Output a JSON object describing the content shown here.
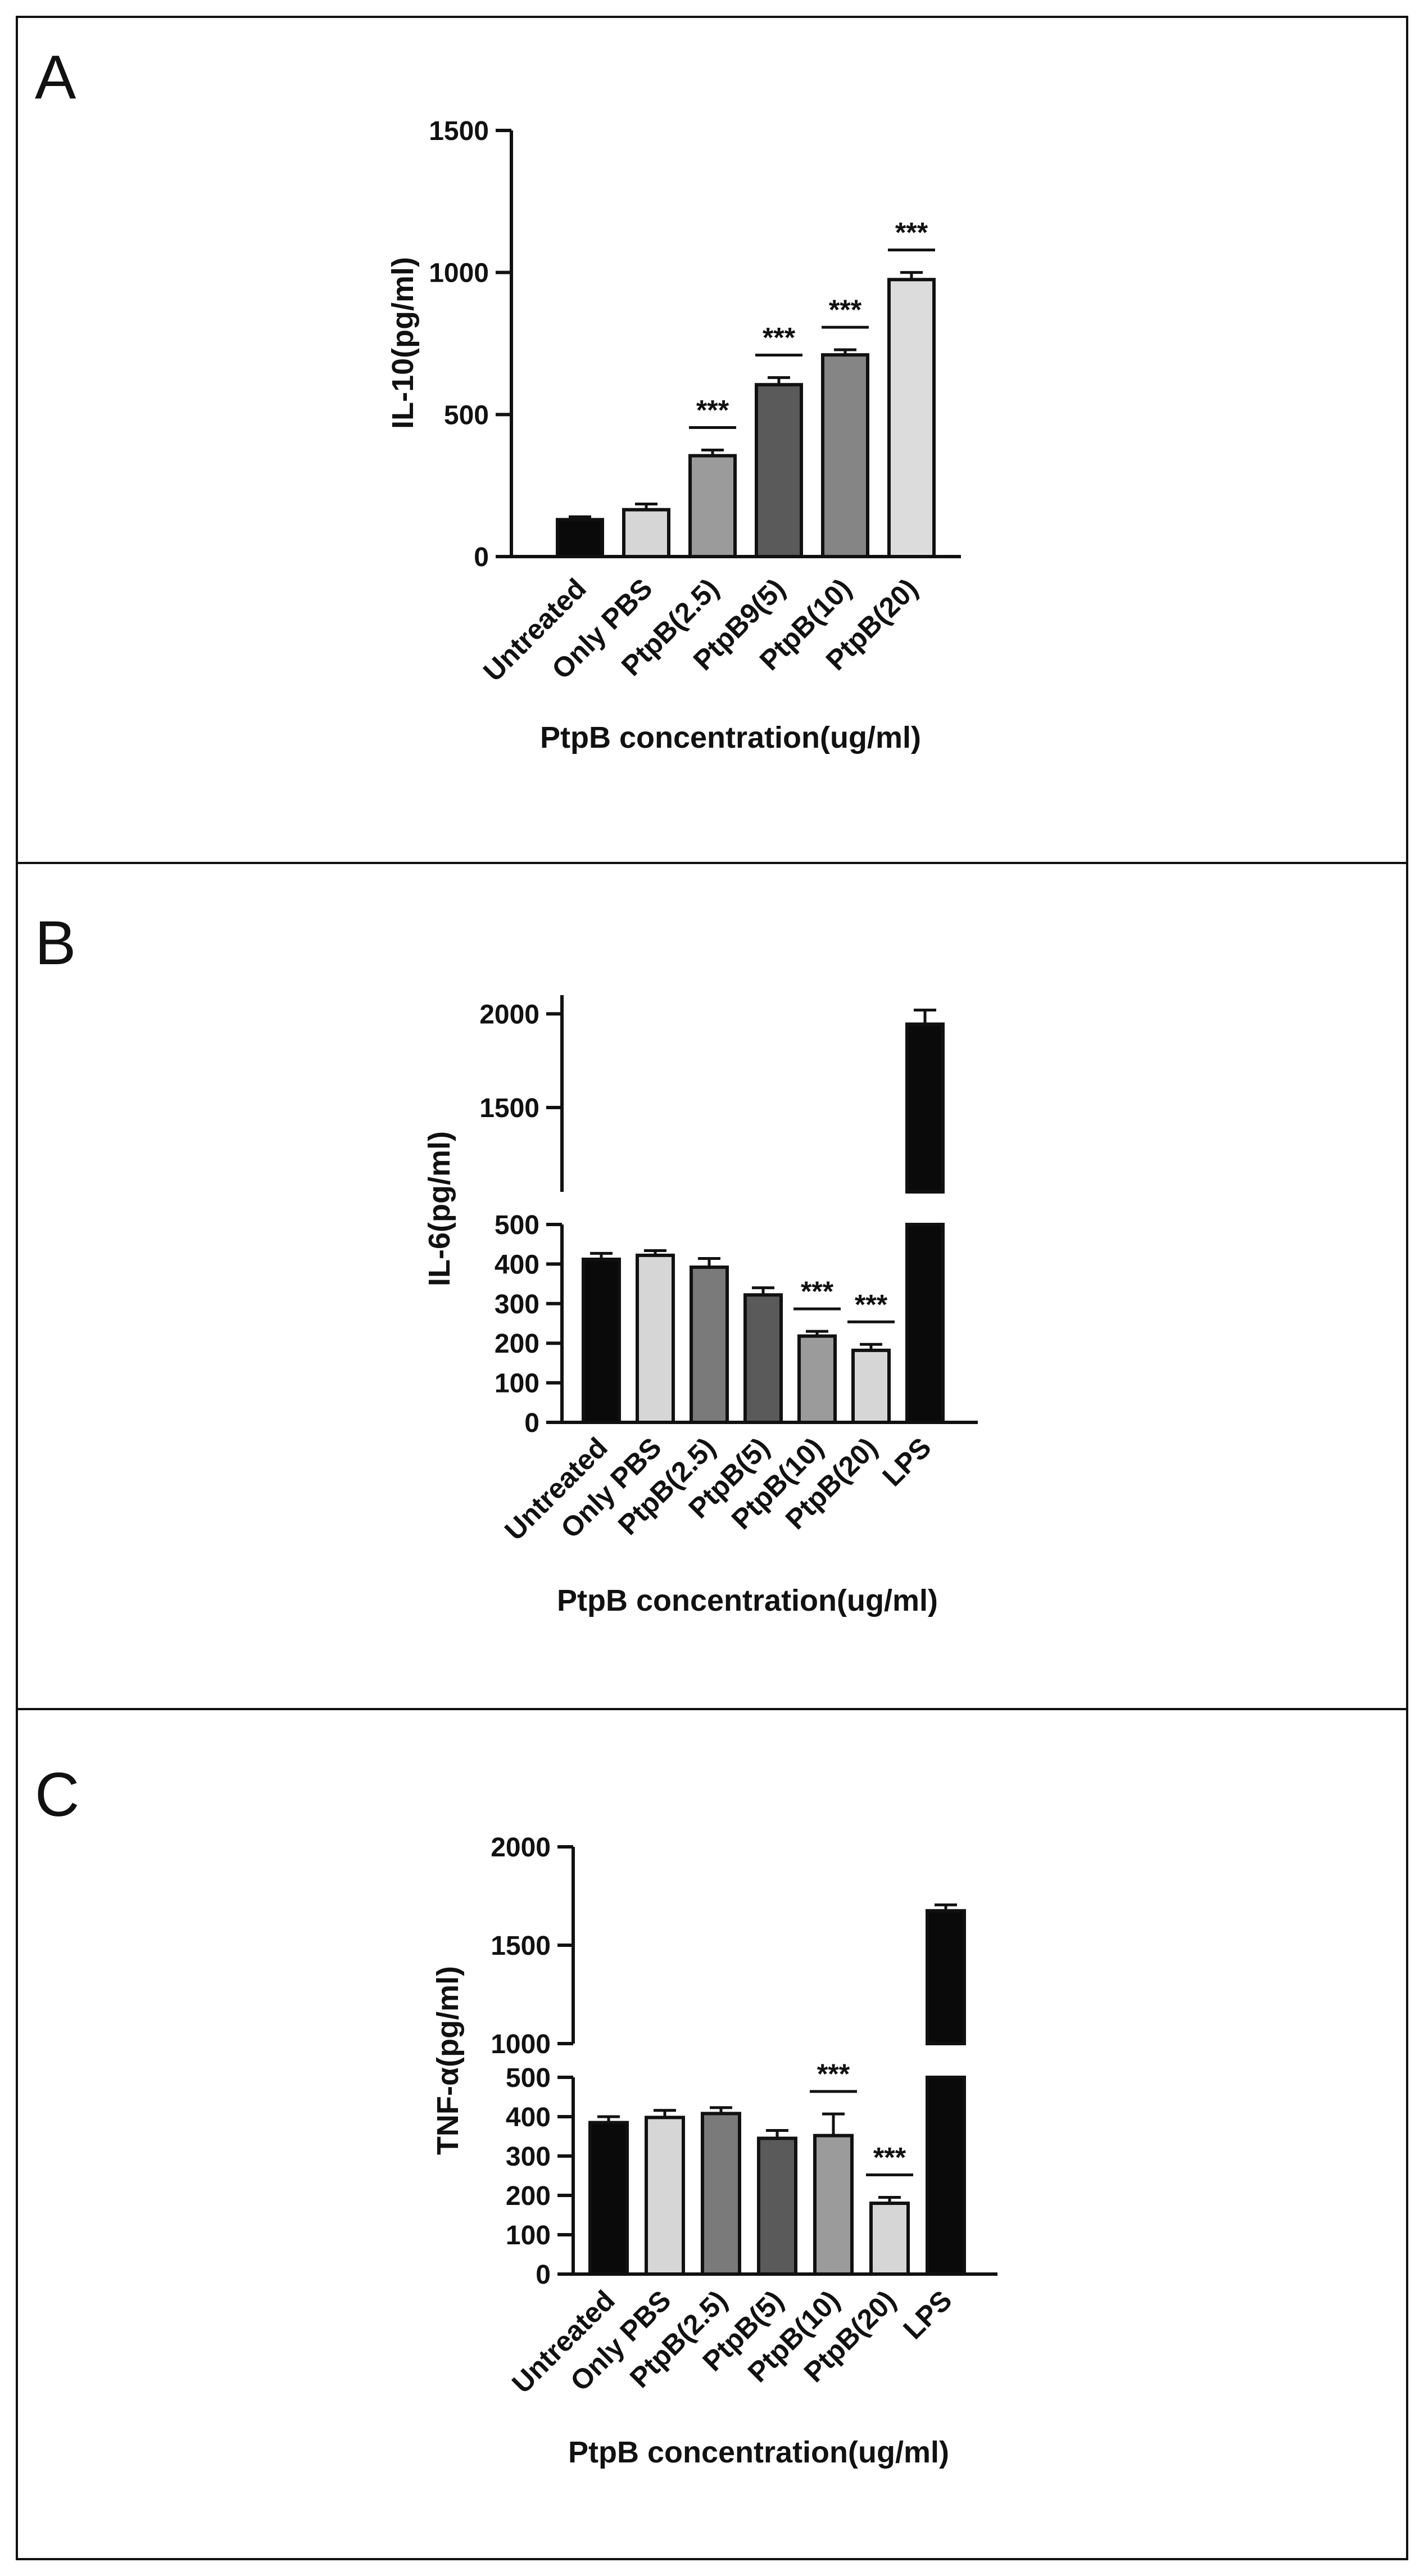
{
  "chart_data": [
    {
      "panel": "A",
      "type": "bar",
      "ylabel": "IL-10(pg/ml)",
      "xlabel": "PtpB concentration(ug/ml)",
      "categories": [
        "Untreated",
        "Only PBS",
        "PtpB(2.5)",
        "PtpB9(5)",
        "PtpB(10)",
        "PtpB(20)"
      ],
      "values": [
        130,
        165,
        355,
        605,
        710,
        975
      ],
      "errors": [
        10,
        20,
        20,
        25,
        18,
        25
      ],
      "colors": [
        "#0a0a0a",
        "#d6d6d6",
        "#9b9b9b",
        "#5a5a5a",
        "#858585",
        "#dcdcdc"
      ],
      "significance": [
        "",
        "",
        "***",
        "***",
        "***",
        "***"
      ],
      "ylim": [
        0,
        1500
      ],
      "yticks": [
        0,
        500,
        1000,
        1500
      ],
      "ytick_labels": [
        "0",
        "500",
        "1000",
        "1500"
      ]
    },
    {
      "panel": "B",
      "type": "bar",
      "ylabel": "IL-6(pg/ml)",
      "xlabel": "PtpB concentration(ug/ml)",
      "categories": [
        "Untreated",
        "Only PBS",
        "PtpB(2.5)",
        "PtpB(5)",
        "PtpB(10)",
        "PtpB(20)",
        "LPS"
      ],
      "values": [
        412,
        422,
        392,
        322,
        218,
        182,
        1945
      ],
      "errors": [
        15,
        12,
        22,
        18,
        12,
        15,
        75
      ],
      "colors": [
        "#0a0a0a",
        "#d6d6d6",
        "#7a7a7a",
        "#5a5a5a",
        "#9b9b9b",
        "#d6d6d6",
        "#0a0a0a"
      ],
      "significance": [
        "",
        "",
        "",
        "",
        "***",
        "***",
        ""
      ],
      "axis_break": {
        "lower": [
          0,
          500
        ],
        "upper": [
          1050,
          2100
        ]
      },
      "yticks": [
        0,
        100,
        200,
        300,
        400,
        500,
        1500,
        2000
      ],
      "ytick_labels": [
        "0",
        "100",
        "200",
        "300",
        "400",
        "500",
        "1500",
        "2000"
      ]
    },
    {
      "panel": "C",
      "type": "bar",
      "ylabel": "TNF-α(pg/ml)",
      "xlabel": "PtpB concentration(ug/ml)",
      "categories": [
        "Untreated",
        "Only PBS",
        "PtpB(2.5)",
        "PtpB(5)",
        "PtpB(10)",
        "PtpB(20)",
        "LPS"
      ],
      "values": [
        385,
        398,
        408,
        345,
        352,
        180,
        1675
      ],
      "errors": [
        15,
        18,
        15,
        20,
        55,
        15,
        30
      ],
      "colors": [
        "#0a0a0a",
        "#d6d6d6",
        "#7a7a7a",
        "#5a5a5a",
        "#9b9b9b",
        "#d6d6d6",
        "#0a0a0a"
      ],
      "significance": [
        "",
        "",
        "",
        "",
        "***",
        "***",
        ""
      ],
      "axis_break": {
        "lower": [
          0,
          500
        ],
        "upper": [
          1000,
          2000
        ]
      },
      "yticks": [
        0,
        100,
        200,
        300,
        400,
        500,
        1000,
        1500,
        2000
      ],
      "ytick_labels": [
        "0",
        "100",
        "200",
        "300",
        "400",
        "500",
        "1000",
        "1500",
        "2000"
      ]
    }
  ]
}
